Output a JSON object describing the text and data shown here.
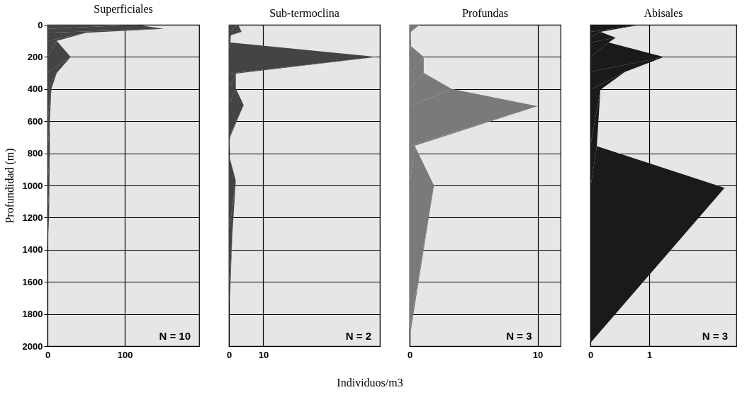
{
  "chart_data": [
    {
      "type": "area",
      "title": "Superficiales",
      "ylabel": "Profundidad (m)",
      "x": [
        115,
        150,
        50,
        12,
        30,
        12,
        5,
        3,
        3,
        2.5,
        2,
        0
      ],
      "values": [
        0,
        25,
        50,
        100,
        200,
        300,
        400,
        600,
        800,
        1000,
        1200,
        1400
      ],
      "color": "#444444",
      "xlim": [
        0,
        196
      ],
      "xticks": [
        0,
        100
      ],
      "ylim": [
        2000,
        0
      ],
      "yticks": [
        0,
        200,
        400,
        600,
        800,
        1000,
        1200,
        1400,
        1600,
        1800,
        2000
      ],
      "grid": true,
      "annotations": [
        "N = 10"
      ]
    },
    {
      "type": "area",
      "title": "Sub-termoclina",
      "xlabel": "Individuos/m3",
      "x": [
        2.7,
        3.7,
        0.6,
        0.4,
        43.1,
        2,
        2,
        4.3,
        0.3,
        0,
        2,
        1,
        0.3
      ],
      "values": [
        0,
        44,
        66,
        110,
        200,
        304,
        397,
        500,
        700,
        810,
        970,
        1300,
        1700
      ],
      "color": "#444444",
      "xlim": [
        0,
        44
      ],
      "xticks": [
        0,
        10
      ],
      "ylim": [
        2000,
        0
      ],
      "yticks": [
        0,
        200,
        400,
        600,
        800,
        1000,
        1200,
        1400,
        1600,
        1800,
        2000
      ],
      "grid": true,
      "tick_labels": "x",
      "annotations": [
        "N = 2"
      ]
    },
    {
      "type": "area",
      "title": "Profundas",
      "x": [
        0.8,
        0.1,
        0.1,
        1.1,
        1.1,
        3.3,
        10,
        0.4,
        1.9,
        0.1
      ],
      "values": [
        0,
        44,
        132,
        200,
        300,
        400,
        507,
        753,
        1000,
        1900
      ],
      "color": "#7a7a7a",
      "xlim": [
        0,
        11.8
      ],
      "xticks": [
        0,
        10
      ],
      "ylim": [
        2000,
        0
      ],
      "yticks": [
        0,
        200,
        400,
        600,
        800,
        1000,
        1200,
        1400,
        1600,
        1800,
        2000
      ],
      "grid": true,
      "tick_labels": "x",
      "annotations": [
        "N = 3"
      ]
    },
    {
      "type": "area",
      "title": "Abisales",
      "x": [
        0.85,
        0.17,
        0.43,
        0.31,
        1.25,
        0.59,
        0.17,
        0.11,
        2.28,
        0
      ],
      "values": [
        0,
        44,
        80,
        110,
        200,
        293,
        404,
        755,
        1015,
        1980
      ],
      "color": "#1a1a1a",
      "xlim": [
        0,
        2.48
      ],
      "xticks": [
        0,
        1
      ],
      "ylim": [
        2000,
        0
      ],
      "yticks": [
        0,
        200,
        400,
        600,
        800,
        1000,
        1200,
        1400,
        1600,
        1800,
        2000
      ],
      "grid": true,
      "tick_labels": "x",
      "annotations": [
        "N = 3"
      ]
    }
  ]
}
